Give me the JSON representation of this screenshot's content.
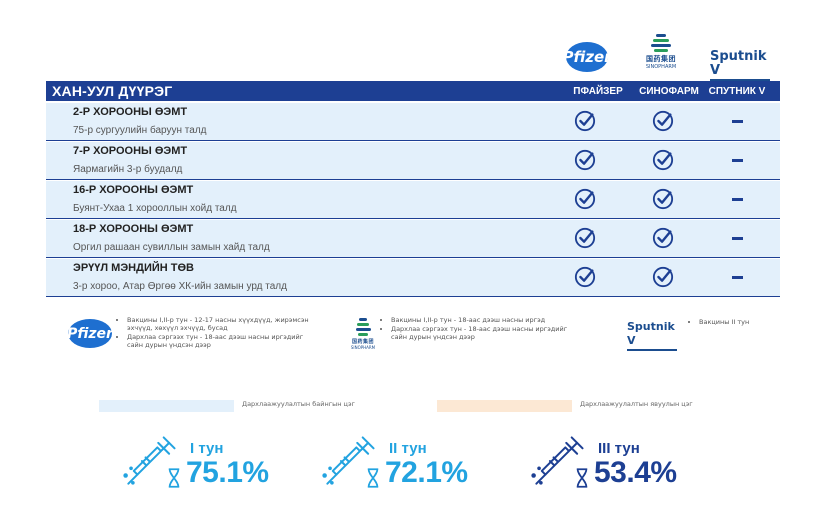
{
  "brands": {
    "pfizer": "Pfizer",
    "sinopharm_cn": "国药集团",
    "sinopharm_en": "SINOPHARM",
    "sputnik": "Sputnik V"
  },
  "table": {
    "title": "ХАН-УУЛ ДҮҮРЭГ",
    "columns": [
      "ПФАЙЗЕР",
      "СИНОФАРМ",
      "СПУТНИК V"
    ],
    "rows": [
      {
        "name": "2-Р ХОРООНЫ ӨЭМТ",
        "address": "75-р сургуулийн баруун талд",
        "pfizer": true,
        "sinopharm": true,
        "sputnik": false
      },
      {
        "name": "7-Р ХОРООНЫ ӨЭМТ",
        "address": "Яармагийн 3-р буудалд",
        "pfizer": true,
        "sinopharm": true,
        "sputnik": false
      },
      {
        "name": "16-Р ХОРООНЫ ӨЭМТ",
        "address": "Буянт-Ухаа 1 хорооллын хойд талд",
        "pfizer": true,
        "sinopharm": true,
        "sputnik": false
      },
      {
        "name": "18-Р ХОРООНЫ ӨЭМТ",
        "address": "Оргил рашаан сувиллын замын хайд  талд",
        "pfizer": true,
        "sinopharm": true,
        "sputnik": false
      },
      {
        "name": "ЭРҮҮЛ МЭНДИЙН ТӨВ",
        "address": "3-р хороо, Атар Өргөө ХК-ийн замын урд талд",
        "pfizer": true,
        "sinopharm": true,
        "sputnik": false
      }
    ]
  },
  "info": {
    "pfizer": [
      "Вакцины I,II-р тун - 12-17 насны хүүхдүүд, жирэмсэн эхчүүд, хөхүүл эхчүүд, бусад",
      "Дархлаа сэргээх тун - 18-аас дээш насны иргэдийг сайн дурын үндсэн дээр"
    ],
    "sinopharm": [
      "Вакцины I,II-р тун - 18-аас дээш насны иргэд",
      "Дархлаа сэргээх тун - 18-аас дээш насны иргэдийг сайн дурын үндсэн дээр"
    ],
    "sputnik": [
      "Вакцины II тун"
    ]
  },
  "legend": {
    "permanent": "Дархлаажуулалтын байнгын цэг",
    "mobile": "Дархлаажуулалтын явуулын цэг"
  },
  "doses": [
    {
      "label": "I тун",
      "value": "75.1%"
    },
    {
      "label": "II тун",
      "value": "72.1%"
    },
    {
      "label": "III тун",
      "value": "53.4%"
    }
  ],
  "colors": {
    "header_blue": "#1d3f93",
    "row_bg": "#e3f0fb",
    "accent_cyan": "#22a3e0",
    "dose3_navy": "#1d3f93",
    "legend_blue": "#e3f0fb",
    "legend_peach": "#fce8d4"
  }
}
